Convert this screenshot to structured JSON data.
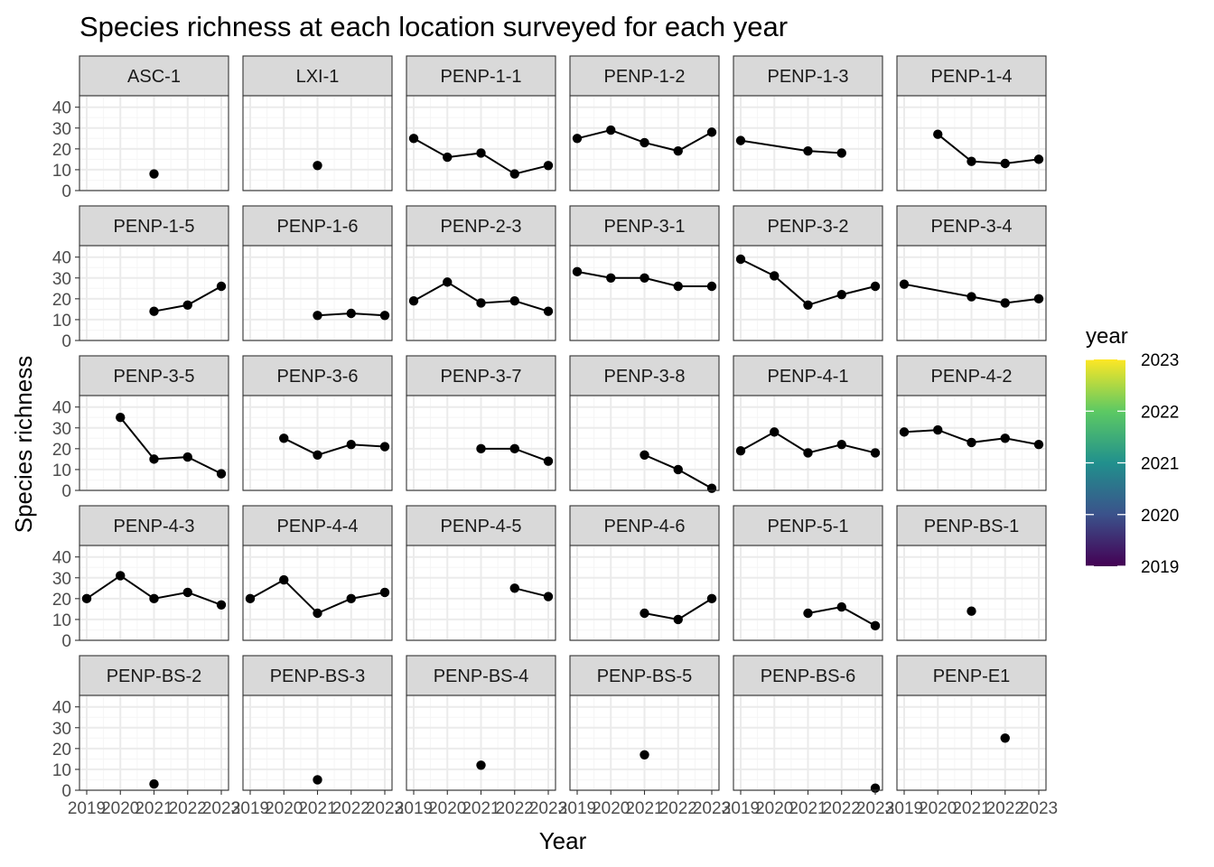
{
  "chart_data": {
    "type": "line",
    "title": "Species richness at each location surveyed for each year",
    "xlabel": "Year",
    "ylabel": "Species richness",
    "x_ticks": [
      "2019",
      "2020",
      "2021",
      "2022",
      "2023"
    ],
    "y_ticks": [
      "0",
      "10",
      "20",
      "30",
      "40"
    ],
    "xlim": [
      2019,
      2023
    ],
    "ylim": [
      0,
      40
    ],
    "grid": true,
    "facet_layout": {
      "rows": 5,
      "cols": 6
    },
    "facets": [
      {
        "name": "ASC-1",
        "points": [
          [
            2021,
            8
          ]
        ]
      },
      {
        "name": "LXI-1",
        "points": [
          [
            2021,
            12
          ]
        ]
      },
      {
        "name": "PENP-1-1",
        "points": [
          [
            2019,
            25
          ],
          [
            2020,
            16
          ],
          [
            2021,
            18
          ],
          [
            2022,
            8
          ],
          [
            2023,
            12
          ]
        ]
      },
      {
        "name": "PENP-1-2",
        "points": [
          [
            2019,
            25
          ],
          [
            2020,
            29
          ],
          [
            2021,
            23
          ],
          [
            2022,
            19
          ],
          [
            2023,
            28
          ]
        ]
      },
      {
        "name": "PENP-1-3",
        "points": [
          [
            2019,
            24
          ],
          [
            2021,
            19
          ],
          [
            2022,
            18
          ]
        ]
      },
      {
        "name": "PENP-1-4",
        "points": [
          [
            2020,
            27
          ],
          [
            2021,
            14
          ],
          [
            2022,
            13
          ],
          [
            2023,
            15
          ]
        ]
      },
      {
        "name": "PENP-1-5",
        "points": [
          [
            2021,
            14
          ],
          [
            2022,
            17
          ],
          [
            2023,
            26
          ]
        ]
      },
      {
        "name": "PENP-1-6",
        "points": [
          [
            2021,
            12
          ],
          [
            2022,
            13
          ],
          [
            2023,
            12
          ]
        ]
      },
      {
        "name": "PENP-2-3",
        "points": [
          [
            2019,
            19
          ],
          [
            2020,
            28
          ],
          [
            2021,
            18
          ],
          [
            2022,
            19
          ],
          [
            2023,
            14
          ]
        ]
      },
      {
        "name": "PENP-3-1",
        "points": [
          [
            2019,
            33
          ],
          [
            2020,
            30
          ],
          [
            2021,
            30
          ],
          [
            2022,
            26
          ],
          [
            2023,
            26
          ]
        ]
      },
      {
        "name": "PENP-3-2",
        "points": [
          [
            2019,
            39
          ],
          [
            2020,
            31
          ],
          [
            2021,
            17
          ],
          [
            2022,
            22
          ],
          [
            2023,
            26
          ]
        ]
      },
      {
        "name": "PENP-3-4",
        "points": [
          [
            2019,
            27
          ],
          [
            2021,
            21
          ],
          [
            2022,
            18
          ],
          [
            2023,
            20
          ]
        ]
      },
      {
        "name": "PENP-3-5",
        "points": [
          [
            2020,
            35
          ],
          [
            2021,
            15
          ],
          [
            2022,
            16
          ],
          [
            2023,
            8
          ]
        ]
      },
      {
        "name": "PENP-3-6",
        "points": [
          [
            2020,
            25
          ],
          [
            2021,
            17
          ],
          [
            2022,
            22
          ],
          [
            2023,
            21
          ]
        ]
      },
      {
        "name": "PENP-3-7",
        "points": [
          [
            2021,
            20
          ],
          [
            2022,
            20
          ],
          [
            2023,
            14
          ]
        ]
      },
      {
        "name": "PENP-3-8",
        "points": [
          [
            2021,
            17
          ],
          [
            2022,
            10
          ],
          [
            2023,
            1
          ]
        ]
      },
      {
        "name": "PENP-4-1",
        "points": [
          [
            2019,
            19
          ],
          [
            2020,
            28
          ],
          [
            2021,
            18
          ],
          [
            2022,
            22
          ],
          [
            2023,
            18
          ]
        ]
      },
      {
        "name": "PENP-4-2",
        "points": [
          [
            2019,
            28
          ],
          [
            2020,
            29
          ],
          [
            2021,
            23
          ],
          [
            2022,
            25
          ],
          [
            2023,
            22
          ]
        ]
      },
      {
        "name": "PENP-4-3",
        "points": [
          [
            2019,
            20
          ],
          [
            2020,
            31
          ],
          [
            2021,
            20
          ],
          [
            2022,
            23
          ],
          [
            2023,
            17
          ]
        ]
      },
      {
        "name": "PENP-4-4",
        "points": [
          [
            2019,
            20
          ],
          [
            2020,
            29
          ],
          [
            2021,
            13
          ],
          [
            2022,
            20
          ],
          [
            2023,
            23
          ]
        ]
      },
      {
        "name": "PENP-4-5",
        "points": [
          [
            2022,
            25
          ],
          [
            2023,
            21
          ]
        ]
      },
      {
        "name": "PENP-4-6",
        "points": [
          [
            2021,
            13
          ],
          [
            2022,
            10
          ],
          [
            2023,
            20
          ]
        ]
      },
      {
        "name": "PENP-5-1",
        "points": [
          [
            2021,
            13
          ],
          [
            2022,
            16
          ],
          [
            2023,
            7
          ]
        ]
      },
      {
        "name": "PENP-BS-1",
        "points": [
          [
            2021,
            14
          ]
        ]
      },
      {
        "name": "PENP-BS-2",
        "points": [
          [
            2021,
            3
          ]
        ]
      },
      {
        "name": "PENP-BS-3",
        "points": [
          [
            2021,
            5
          ]
        ]
      },
      {
        "name": "PENP-BS-4",
        "points": [
          [
            2021,
            12
          ]
        ]
      },
      {
        "name": "PENP-BS-5",
        "points": [
          [
            2021,
            17
          ]
        ]
      },
      {
        "name": "PENP-BS-6",
        "points": [
          [
            2023,
            1
          ]
        ]
      },
      {
        "name": "PENP-E1",
        "points": [
          [
            2022,
            25
          ]
        ]
      }
    ],
    "legend": {
      "title": "year",
      "labels": [
        "2023",
        "2022",
        "2021",
        "2020",
        "2019"
      ],
      "placement": "right",
      "colorscale": [
        "#440154",
        "#3b528b",
        "#21908d",
        "#5dc963",
        "#fde725"
      ]
    },
    "colors": {
      "strip_fill": "#d9d9d9",
      "panel_border": "#333333",
      "grid_major": "#ebebeb",
      "grid_minor": "#f5f5f5",
      "line": "#000000"
    }
  }
}
